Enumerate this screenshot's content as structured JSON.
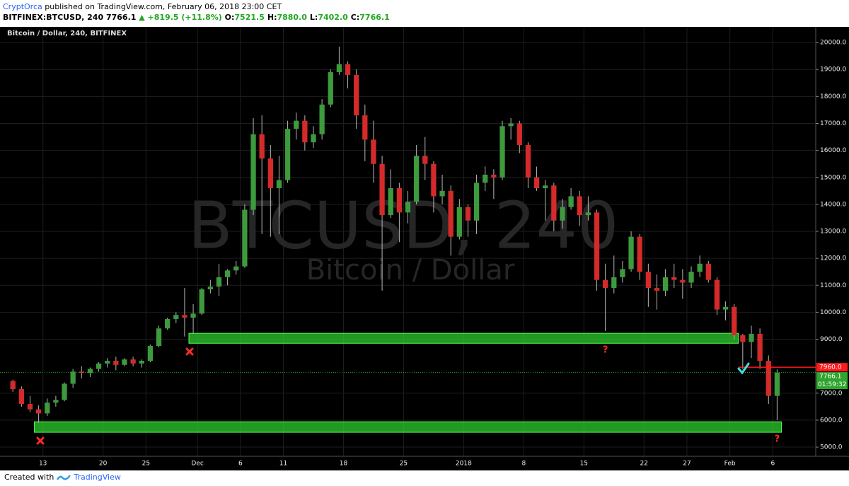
{
  "header": {
    "publisher": "CryptOrca",
    "published": "published on TradingView.com, February 06, 2018 23:00 CET",
    "symbol": "BITFINEX:BTCUSD, 240",
    "last": "7766.1",
    "change": "▲ +819.5 (+11.8%)",
    "ohlc": [
      {
        "label": "O:",
        "value": "7521.5"
      },
      {
        "label": "H:",
        "value": "7880.0"
      },
      {
        "label": "L:",
        "value": "7402.0"
      },
      {
        "label": "C:",
        "value": "7766.1"
      }
    ]
  },
  "footer": {
    "text": "Created with",
    "brand": "TradingView"
  },
  "chart_data": {
    "type": "candlestick",
    "title": "Bitcoin / Dollar, 240, BITFINEX",
    "watermark": [
      "BTCUSD, 240",
      "Bitcoin / Dollar"
    ],
    "up_color": "#3d9a3d",
    "down_color": "#d42a2a",
    "wick_color": "#b8b8b8",
    "grid": true,
    "xlim": [
      "2017-11-08",
      "2018-02-11"
    ],
    "xticks": [
      {
        "value": "2017-11-13",
        "label": "13"
      },
      {
        "value": "2017-11-20",
        "label": "20"
      },
      {
        "value": "2017-11-25",
        "label": "25"
      },
      {
        "value": "2017-12-01",
        "label": "Dec"
      },
      {
        "value": "2017-12-06",
        "label": "6"
      },
      {
        "value": "2017-12-11",
        "label": "11"
      },
      {
        "value": "2017-12-18",
        "label": "18"
      },
      {
        "value": "2017-12-25",
        "label": "25"
      },
      {
        "value": "2018-01-01",
        "label": "2018"
      },
      {
        "value": "2018-01-08",
        "label": "8"
      },
      {
        "value": "2018-01-15",
        "label": "15"
      },
      {
        "value": "2018-01-22",
        "label": "22"
      },
      {
        "value": "2018-01-27",
        "label": "27"
      },
      {
        "value": "2018-02-01",
        "label": "Feb"
      },
      {
        "value": "2018-02-06",
        "label": "6"
      }
    ],
    "ylim": [
      4660,
      20580
    ],
    "yticks": [
      {
        "value": 5000,
        "label": "5000.0"
      },
      {
        "value": 6000,
        "label": "6000.0"
      },
      {
        "value": 7000,
        "label": "7000.0"
      },
      {
        "value": 9000,
        "label": "9000.0"
      },
      {
        "value": 10000,
        "label": "10000.0"
      },
      {
        "value": 11000,
        "label": "11000.0"
      },
      {
        "value": 12000,
        "label": "12000.0"
      },
      {
        "value": 13000,
        "label": "13000.0"
      },
      {
        "value": 14000,
        "label": "14000.0"
      },
      {
        "value": 15000,
        "label": "15000.0"
      },
      {
        "value": 16000,
        "label": "16000.0"
      },
      {
        "value": 17000,
        "label": "17000.0"
      },
      {
        "value": 18000,
        "label": "18000.0"
      },
      {
        "value": 19000,
        "label": "19000.0"
      },
      {
        "value": 20000,
        "label": "20000.0"
      }
    ],
    "x": [
      "2017-11-09",
      "2017-11-10",
      "2017-11-11",
      "2017-11-12",
      "2017-11-13",
      "2017-11-14",
      "2017-11-15",
      "2017-11-16",
      "2017-11-17",
      "2017-11-18",
      "2017-11-19",
      "2017-11-20",
      "2017-11-21",
      "2017-11-22",
      "2017-11-23",
      "2017-11-24",
      "2017-11-25",
      "2017-11-26",
      "2017-11-27",
      "2017-11-28",
      "2017-11-29",
      "2017-11-30",
      "2017-12-01",
      "2017-12-02",
      "2017-12-03",
      "2017-12-04",
      "2017-12-05",
      "2017-12-06",
      "2017-12-07",
      "2017-12-08",
      "2017-12-09",
      "2017-12-10",
      "2017-12-11",
      "2017-12-12",
      "2017-12-13",
      "2017-12-14",
      "2017-12-15",
      "2017-12-16",
      "2017-12-17",
      "2017-12-18",
      "2017-12-19",
      "2017-12-20",
      "2017-12-21",
      "2017-12-22",
      "2017-12-23",
      "2017-12-24",
      "2017-12-25",
      "2017-12-26",
      "2017-12-27",
      "2017-12-28",
      "2017-12-29",
      "2017-12-30",
      "2017-12-31",
      "2018-01-01",
      "2018-01-02",
      "2018-01-03",
      "2018-01-04",
      "2018-01-05",
      "2018-01-06",
      "2018-01-07",
      "2018-01-08",
      "2018-01-09",
      "2018-01-10",
      "2018-01-11",
      "2018-01-12",
      "2018-01-13",
      "2018-01-14",
      "2018-01-15",
      "2018-01-16",
      "2018-01-17",
      "2018-01-18",
      "2018-01-19",
      "2018-01-20",
      "2018-01-21",
      "2018-01-22",
      "2018-01-23",
      "2018-01-24",
      "2018-01-25",
      "2018-01-26",
      "2018-01-27",
      "2018-01-28",
      "2018-01-29",
      "2018-01-30",
      "2018-01-31",
      "2018-02-01",
      "2018-02-02",
      "2018-02-03",
      "2018-02-04",
      "2018-02-05",
      "2018-02-06"
    ],
    "open": [
      7450,
      7150,
      6600,
      6400,
      6250,
      6650,
      6750,
      7350,
      7800,
      7750,
      7900,
      8100,
      8200,
      8050,
      8250,
      8100,
      8200,
      8750,
      9400,
      9750,
      9900,
      9800,
      9950,
      10850,
      10950,
      11300,
      11550,
      11700,
      13800,
      16600,
      15700,
      14600,
      14900,
      16800,
      17100,
      16300,
      16600,
      17700,
      18900,
      19200,
      18800,
      17300,
      16400,
      15500,
      13600,
      14600,
      13700,
      14100,
      15800,
      15500,
      14300,
      14500,
      12800,
      13900,
      13400,
      14800,
      15100,
      15000,
      16900,
      17000,
      16200,
      15000,
      14600,
      14700,
      13400,
      13900,
      14300,
      13600,
      13700,
      11200,
      10900,
      11300,
      11600,
      12800,
      11500,
      10900,
      10800,
      11300,
      11200,
      11100,
      11500,
      11800,
      11200,
      10100,
      10200,
      9150,
      8900,
      9200,
      8200,
      6900
    ],
    "high": [
      7500,
      7250,
      6900,
      6550,
      6800,
      6900,
      7400,
      7900,
      8000,
      7950,
      8150,
      8300,
      8350,
      8300,
      8350,
      8250,
      8800,
      9500,
      9800,
      10000,
      10900,
      10300,
      10900,
      11200,
      11800,
      11600,
      11900,
      14000,
      17200,
      17300,
      16200,
      15800,
      17100,
      17400,
      17300,
      16900,
      17900,
      19000,
      19850,
      19300,
      19000,
      17700,
      17100,
      15800,
      15300,
      14800,
      14500,
      16200,
      16500,
      15600,
      15100,
      14700,
      14200,
      14000,
      15100,
      15400,
      15300,
      17100,
      17200,
      17100,
      16300,
      15400,
      14900,
      14800,
      14200,
      14600,
      14500,
      14300,
      13800,
      11800,
      12100,
      11900,
      13000,
      12900,
      11800,
      11400,
      11600,
      11800,
      11600,
      11700,
      12100,
      11900,
      11300,
      10400,
      10300,
      9200,
      9500,
      9400,
      8400,
      7880
    ],
    "low": [
      7050,
      6500,
      6300,
      5900,
      6150,
      6500,
      6700,
      7200,
      7550,
      7600,
      7800,
      7950,
      7850,
      8000,
      8000,
      7950,
      8150,
      8700,
      9350,
      9600,
      9100,
      9200,
      9900,
      10700,
      10600,
      11000,
      11400,
      11650,
      13600,
      12900,
      12800,
      12900,
      14800,
      16400,
      16000,
      16100,
      16400,
      17600,
      18800,
      18300,
      16800,
      15600,
      14800,
      10800,
      13500,
      12600,
      13300,
      14000,
      14900,
      13700,
      14000,
      12100,
      12700,
      12800,
      12900,
      14500,
      14200,
      14900,
      16400,
      15900,
      14600,
      14500,
      13400,
      13000,
      13100,
      13800,
      13200,
      13400,
      10800,
      9300,
      10700,
      11100,
      11500,
      11200,
      10200,
      10100,
      10600,
      10900,
      10500,
      10900,
      11300,
      11100,
      9900,
      9700,
      9000,
      7900,
      8300,
      7900,
      6600,
      6000
    ],
    "close": [
      7150,
      6600,
      6400,
      6250,
      6650,
      6750,
      7350,
      7800,
      7750,
      7900,
      8100,
      8200,
      8050,
      8250,
      8100,
      8200,
      8750,
      9400,
      9750,
      9900,
      9800,
      9950,
      10850,
      10950,
      11300,
      11550,
      11700,
      13800,
      16600,
      15700,
      14600,
      14900,
      16800,
      17100,
      16300,
      16600,
      17700,
      18900,
      19200,
      18800,
      17300,
      16400,
      15500,
      13600,
      14600,
      13700,
      14100,
      15800,
      15500,
      14300,
      14500,
      12800,
      13900,
      13400,
      14800,
      15100,
      15000,
      16900,
      17000,
      16200,
      15000,
      14600,
      14700,
      13400,
      13900,
      14300,
      13600,
      13700,
      11200,
      10900,
      11300,
      11600,
      12800,
      11500,
      10900,
      10800,
      11300,
      11200,
      11100,
      11500,
      11800,
      11200,
      10100,
      10200,
      9150,
      8900,
      9200,
      8200,
      6900,
      7766.1
    ],
    "zones": [
      {
        "from": "2017-11-30",
        "to": "2018-02-02",
        "low": 8850,
        "high": 9220
      },
      {
        "from": "2017-11-12",
        "to": "2018-02-07",
        "low": 5550,
        "high": 5940
      }
    ],
    "zone_color": "#2ecc2e",
    "price_lines": [
      {
        "value": 7960,
        "label": "7960.0",
        "from": "2018-02-02",
        "color": "#ff1a1a"
      }
    ],
    "last_price": {
      "value": 7766.1,
      "label": "7766.1",
      "countdown": "01:59:32",
      "color": "#2fa52f"
    },
    "annotations": [
      {
        "text": "?",
        "x": "2018-01-17",
        "y": 8600,
        "color": "#ff2a2a"
      },
      {
        "text": "?",
        "x": "2018-02-06",
        "y": 5290,
        "color": "#ff2a2a"
      }
    ]
  }
}
